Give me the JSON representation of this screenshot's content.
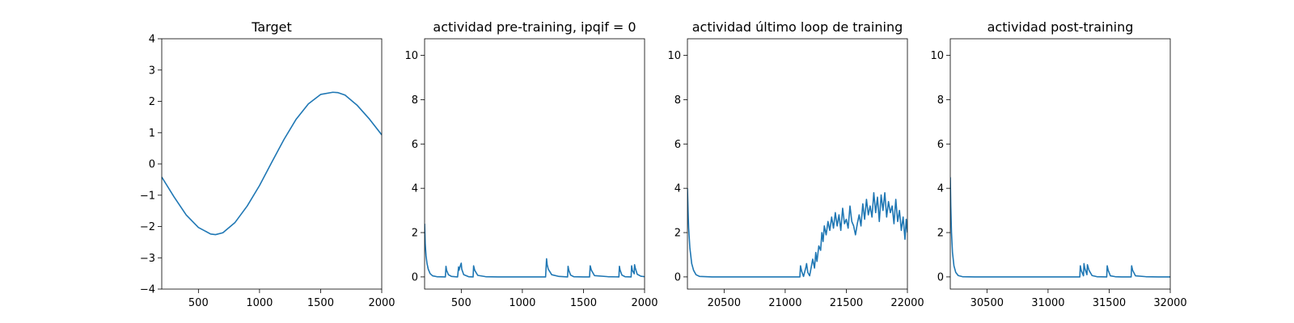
{
  "chart_data": [
    {
      "type": "line",
      "title": "Target",
      "xlabel": "",
      "ylabel": "",
      "xlim": [
        200,
        2000
      ],
      "ylim": [
        -4,
        4
      ],
      "xticks": [
        500,
        1000,
        1500,
        2000
      ],
      "yticks": [
        -4,
        -3,
        -2,
        -1,
        0,
        1,
        2,
        3,
        4
      ],
      "grid": false,
      "series": [
        {
          "color": "#1f77b4",
          "x": [
            200,
            300,
            400,
            500,
            600,
            640,
            700,
            800,
            900,
            1000,
            1100,
            1200,
            1300,
            1400,
            1500,
            1600,
            1640,
            1700,
            1800,
            1900,
            2000
          ],
          "y": [
            -0.42,
            -1.05,
            -1.63,
            -2.03,
            -2.24,
            -2.26,
            -2.2,
            -1.87,
            -1.34,
            -0.69,
            0.05,
            0.78,
            1.43,
            1.92,
            2.22,
            2.29,
            2.28,
            2.2,
            1.87,
            1.43,
            0.93
          ]
        }
      ]
    },
    {
      "type": "line",
      "title": "actividad pre-training, ipqif = 0",
      "xlabel": "",
      "ylabel": "",
      "xlim": [
        200,
        2000
      ],
      "ylim": [
        -0.55,
        10.75
      ],
      "xticks": [
        500,
        1000,
        1500,
        2000
      ],
      "yticks": [
        0,
        2,
        4,
        6,
        8,
        10
      ],
      "grid": false,
      "series": [
        {
          "color": "#1f77b4",
          "x": [
            200,
            205,
            212,
            220,
            230,
            245,
            265,
            300,
            370,
            375,
            380,
            395,
            420,
            470,
            478,
            482,
            495,
            500,
            504,
            520,
            560,
            597,
            601,
            610,
            635,
            700,
            800,
            900,
            1000,
            1100,
            1190,
            1196,
            1198,
            1203,
            1212,
            1240,
            1300,
            1370,
            1374,
            1380,
            1395,
            1420,
            1500,
            1550,
            1555,
            1565,
            1590,
            1700,
            1790,
            1794,
            1800,
            1815,
            1840,
            1890,
            1894,
            1900,
            1915,
            1918,
            1924,
            1940,
            1970,
            2000
          ],
          "y": [
            2.4,
            1.5,
            0.95,
            0.6,
            0.35,
            0.15,
            0.05,
            0.01,
            0.0,
            0.48,
            0.3,
            0.1,
            0.02,
            0.0,
            0.45,
            0.3,
            0.55,
            0.62,
            0.35,
            0.1,
            0.01,
            0.0,
            0.5,
            0.3,
            0.07,
            0.01,
            0.0,
            0.0,
            0.0,
            0.0,
            0.0,
            0.62,
            0.82,
            0.55,
            0.35,
            0.1,
            0.02,
            0.0,
            0.48,
            0.3,
            0.08,
            0.01,
            0.0,
            0.0,
            0.5,
            0.3,
            0.06,
            0.01,
            0.0,
            0.48,
            0.3,
            0.08,
            0.01,
            0.0,
            0.5,
            0.3,
            0.14,
            0.55,
            0.4,
            0.12,
            0.03,
            0.01
          ]
        }
      ]
    },
    {
      "type": "line",
      "title": "actividad último loop de training",
      "xlabel": "",
      "ylabel": "",
      "xlim": [
        20200,
        22000
      ],
      "ylim": [
        -0.55,
        10.75
      ],
      "xticks": [
        20500,
        21000,
        21500,
        22000
      ],
      "yticks": [
        0,
        2,
        4,
        6,
        8,
        10
      ],
      "grid": false,
      "series": [
        {
          "color": "#1f77b4",
          "x": [
            20200,
            20205,
            20210,
            20220,
            20235,
            20250,
            20270,
            20300,
            20400,
            20600,
            20800,
            21000,
            21120,
            21125,
            21135,
            21150,
            21170,
            21175,
            21185,
            21200,
            21215,
            21225,
            21240,
            21250,
            21260,
            21275,
            21290,
            21300,
            21310,
            21320,
            21335,
            21350,
            21365,
            21380,
            21395,
            21410,
            21425,
            21440,
            21455,
            21470,
            21485,
            21500,
            21515,
            21530,
            21545,
            21560,
            21575,
            21590,
            21605,
            21620,
            21635,
            21650,
            21665,
            21680,
            21695,
            21710,
            21725,
            21740,
            21755,
            21770,
            21785,
            21800,
            21815,
            21830,
            21845,
            21860,
            21875,
            21890,
            21905,
            21920,
            21935,
            21950,
            21965,
            21980,
            21990,
            22000
          ],
          "y": [
            4.0,
            3.0,
            2.2,
            1.3,
            0.6,
            0.3,
            0.1,
            0.02,
            0.0,
            0.0,
            0.0,
            0.0,
            0.0,
            0.5,
            0.25,
            0.02,
            0.45,
            0.6,
            0.2,
            0.05,
            0.5,
            0.8,
            0.4,
            1.1,
            0.7,
            1.4,
            1.2,
            2.0,
            1.6,
            2.3,
            1.9,
            2.5,
            2.1,
            2.7,
            2.2,
            2.9,
            2.3,
            2.8,
            2.1,
            3.1,
            2.4,
            2.6,
            2.2,
            3.2,
            2.5,
            2.3,
            1.9,
            2.4,
            2.8,
            2.3,
            3.3,
            2.6,
            3.5,
            2.8,
            3.2,
            2.7,
            3.8,
            2.9,
            3.6,
            2.5,
            3.7,
            3.0,
            3.8,
            2.7,
            3.4,
            2.9,
            3.2,
            2.4,
            3.5,
            2.5,
            3.0,
            2.1,
            2.7,
            1.7,
            2.6,
            2.0
          ]
        }
      ]
    },
    {
      "type": "line",
      "title": "actividad post-training",
      "xlabel": "",
      "ylabel": "",
      "xlim": [
        30200,
        32000
      ],
      "ylim": [
        -0.55,
        10.75
      ],
      "xticks": [
        30500,
        31000,
        31500,
        32000
      ],
      "yticks": [
        0,
        2,
        4,
        6,
        8,
        10
      ],
      "grid": false,
      "series": [
        {
          "color": "#1f77b4",
          "x": [
            30200,
            30204,
            30210,
            30218,
            30230,
            30245,
            30265,
            30300,
            30400,
            30700,
            31000,
            31200,
            31260,
            31264,
            31272,
            31290,
            31294,
            31300,
            31318,
            31322,
            31335,
            31360,
            31400,
            31480,
            31484,
            31492,
            31510,
            31550,
            31600,
            31680,
            31684,
            31692,
            31715,
            31800,
            31900,
            32000
          ],
          "y": [
            4.5,
            3.2,
            2.0,
            1.1,
            0.5,
            0.2,
            0.06,
            0.01,
            0.0,
            0.0,
            0.0,
            0.0,
            0.0,
            0.5,
            0.28,
            0.05,
            0.6,
            0.4,
            0.1,
            0.55,
            0.3,
            0.06,
            0.01,
            0.0,
            0.5,
            0.3,
            0.05,
            0.01,
            0.0,
            0.0,
            0.5,
            0.3,
            0.05,
            0.01,
            0.0,
            0.0
          ]
        }
      ]
    }
  ]
}
